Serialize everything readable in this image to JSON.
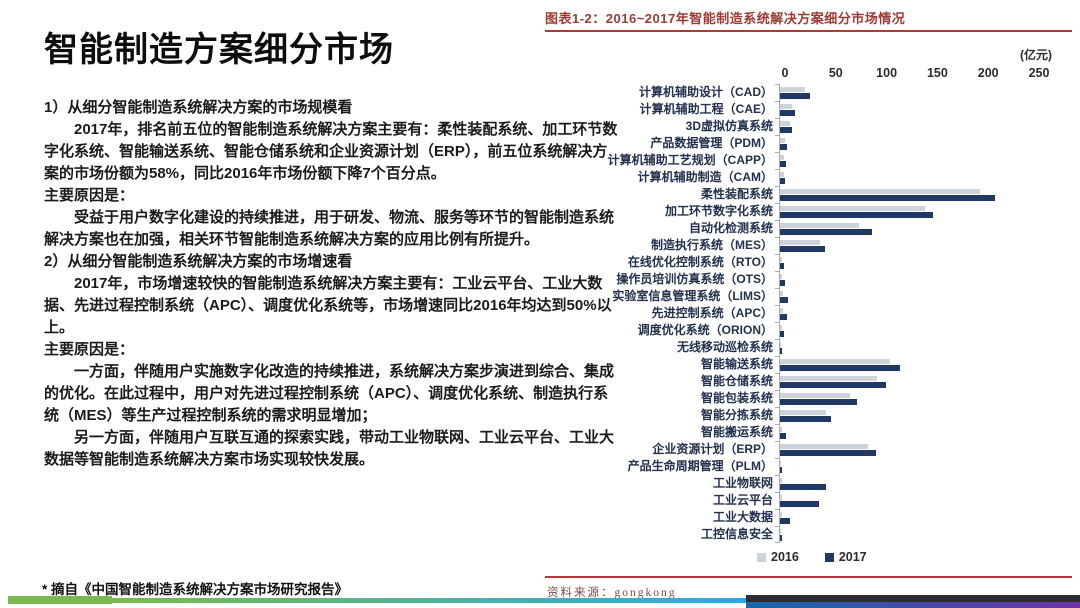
{
  "left": {
    "title": "智能制造方案细分市场",
    "paragraphs": [
      {
        "text": "1）从细分智能制造系统解决方案的市场规模看",
        "indent": false
      },
      {
        "text": "2017年，排名前五位的智能制造系统解决方案主要有：柔性装配系统、加工环节数字化系统、智能输送系统、智能仓储系统和企业资源计划（ERP），前五位系统解决方案的市场份额为58%，同比2016年市场份额下降7个百分点。",
        "indent": true
      },
      {
        "text": "主要原因是：",
        "indent": false
      },
      {
        "text": "受益于用户数字化建设的持续推进，用于研发、物流、服务等环节的智能制造系统解决方案也在加强，相关环节智能制造系统解决方案的应用比例有所提升。",
        "indent": true
      },
      {
        "text": "2）从细分智能制造系统解决方案的市场增速看",
        "indent": false
      },
      {
        "text": "2017年，市场增速较快的智能制造系统解决方案主要有：工业云平台、工业大数据、先进过程控制系统（APC）、调度优化系统等，市场增速同比2016年均达到50%以上。",
        "indent": true
      },
      {
        "text": "主要原因是：",
        "indent": false
      },
      {
        "text": "一方面，伴随用户实施数字化改造的持续推进，系统解决方案步演进到综合、集成的优化。在此过程中，用户对先进过程控制系统（APC）、调度优化系统、制造执行系统（MES）等生产过程控制系统的需求明显增加；",
        "indent": true
      },
      {
        "text": "另一方面，伴随用户互联互通的探索实践，带动工业物联网、工业云平台、工业大数据等智能制造系统解决方案市场实现较快发展。",
        "indent": true
      }
    ],
    "footnote": "* 摘自《中国智能制造系统解决方案市场研究报告》"
  },
  "chart": {
    "header": "图表1-2：2016~2017年智能制造系统解决方案细分市场情况",
    "unit": "(亿元)",
    "source_label": "资料来源：",
    "source_value": "gongkong"
  },
  "chart_data": {
    "type": "bar",
    "orientation": "horizontal",
    "title": "图表1-2：2016~2017年智能制造系统解决方案细分市场情况",
    "x_unit": "亿元",
    "xlim": [
      0,
      250
    ],
    "xticks": [
      0,
      50,
      100,
      150,
      200,
      250
    ],
    "axis_position": "top",
    "grid": false,
    "legend_position": "bottom",
    "categories": [
      "计算机辅助设计（CAD）",
      "计算机辅助工程（CAE）",
      "3D虚拟仿真系统",
      "产品数据管理（PDM）",
      "计算机辅助工艺规划（CAPP）",
      "计算机辅助制造（CAM）",
      "柔性装配系统",
      "加工环节数字化系统",
      "自动化检测系统",
      "制造执行系统（MES）",
      "在线优化控制系统（RTO）",
      "操作员培训仿真系统（OTS）",
      "实验室信息管理系统（LIMS）",
      "先进控制系统（APC）",
      "调度优化系统（ORION）",
      "无线移动巡检系统",
      "智能输送系统",
      "智能仓储系统",
      "智能包装系统",
      "智能分拣系统",
      "智能搬运系统",
      "企业资源计划（ERP）",
      "产品生命周期管理（PLM）",
      "工业物联网",
      "工业云平台",
      "工业大数据",
      "工控信息安全"
    ],
    "series": [
      {
        "name": "2016",
        "color": "#CDD3DA",
        "values": [
          25,
          12,
          10,
          5,
          4,
          4,
          197,
          143,
          78,
          39,
          2,
          2,
          3,
          3,
          2,
          1,
          108,
          95,
          69,
          45,
          2,
          87,
          1,
          2,
          2,
          2,
          1
        ]
      },
      {
        "name": "2017",
        "color": "#1F3864",
        "values": [
          30,
          15,
          12,
          7,
          6,
          5,
          212,
          151,
          91,
          44,
          4,
          5,
          8,
          7,
          4,
          2,
          118,
          104,
          76,
          50,
          6,
          94,
          2,
          45,
          38,
          10,
          2
        ]
      }
    ]
  },
  "colors": {
    "accent_red": "#AE3B33",
    "title_red": "#9E3A33",
    "band_green": "#7CB84E",
    "band_blue": "#29ABE2",
    "band_dark": "#2B2D32",
    "band_deep_blue": "#1668AA",
    "band_purple": "#7133A7"
  }
}
